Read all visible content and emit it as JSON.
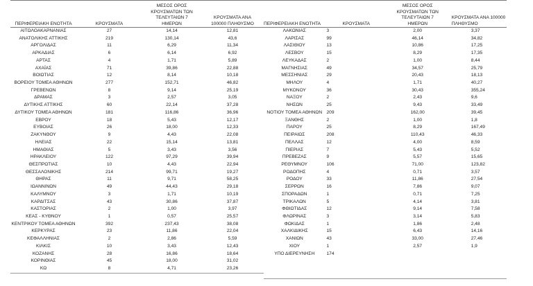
{
  "headers": {
    "region": "ΠΕΡΙΦΕΡΕΙΑΚΗ ΕΝΟΤΗΤΑ",
    "cases": "ΚΡΟΥΣΜΑΤΑ",
    "avg7": "ΜΕΣΟΣ ΟΡΟΣ ΚΡΟΥΣΜΑΤΩΝ ΤΩΝ ΤΕΛΕΥΤΑΙΩΝ 7 ΗΜΕΡΩΝ",
    "per100k": "ΚΡΟΥΣΜΑΤΑ ΑΝΑ 100000 ΠΛΗΘΥΣΜΟ"
  },
  "left_rows": [
    [
      "ΑΙΤΩΛΟΑΚΑΡΝΑΝΙΑΣ",
      "27",
      "14,14",
      "12,81"
    ],
    [
      "ΑΝΑΤΟΛΙΚΗΣ ΑΤΤΙΚΗΣ",
      "219",
      "130,14",
      "43,6"
    ],
    [
      "ΑΡΓΟΛΙΔΑΣ",
      "11",
      "6,29",
      "11,34"
    ],
    [
      "ΑΡΚΑΔΙΑΣ",
      "6",
      "6,14",
      "6,92"
    ],
    [
      "ΑΡΤΑΣ",
      "4",
      "1,71",
      "5,89"
    ],
    [
      "ΑΧΑΪΑΣ",
      "71",
      "39,86",
      "22,88"
    ],
    [
      "ΒΟΙΩΤΙΑΣ",
      "12",
      "8,14",
      "10,18"
    ],
    [
      "ΒΟΡΕΙΟΥ ΤΟΜΕΑ ΑΘΗΝΩΝ",
      "277",
      "152,71",
      "46,82"
    ],
    [
      "ΓΡΕΒΕΝΩΝ",
      "8",
      "9,14",
      "25,19"
    ],
    [
      "ΔΡΑΜΑΣ",
      "3",
      "2,57",
      "3,05"
    ],
    [
      "ΔΥΤΙΚΗΣ ΑΤΤΙΚΗΣ",
      "60",
      "22,14",
      "37,28"
    ],
    [
      "ΔΥΤΙΚΟΥ ΤΟΜΕΑ ΑΘΗΝΩΝ",
      "181",
      "116,86",
      "36,96"
    ],
    [
      "ΕΒΡΟΥ",
      "18",
      "5,43",
      "12,17"
    ],
    [
      "ΕΥΒΟΙΑΣ",
      "26",
      "18,00",
      "12,33"
    ],
    [
      "ΖΑΚΥΝΘΟΥ",
      "9",
      "4,43",
      "22,08"
    ],
    [
      "ΗΛΕΙΑΣ",
      "22",
      "15,14",
      "13,81"
    ],
    [
      "ΗΜΑΘΙΑΣ",
      "5",
      "3,43",
      "3,56"
    ],
    [
      "ΗΡΑΚΛΕΙΟΥ",
      "122",
      "97,29",
      "39,94"
    ],
    [
      "ΘΕΣΠΡΩΤΙΑΣ",
      "10",
      "4,43",
      "22,94"
    ],
    [
      "ΘΕΣΣΑΛΟΝΙΚΗΣ",
      "214",
      "99,71",
      "19,27"
    ],
    [
      "ΘΗΡΑΣ",
      "11",
      "9,71",
      "58,25"
    ],
    [
      "ΙΩΑΝΝΙΝΩΝ",
      "49",
      "44,43",
      "29,18"
    ],
    [
      "ΚΑΛΥΜΝΟΥ",
      "3",
      "1,71",
      "10,19"
    ],
    [
      "ΚΑΡΔΙΤΣΑΣ",
      "43",
      "30,86",
      "37,87"
    ],
    [
      "ΚΑΣΤΟΡΙΑΣ",
      "2",
      "1,00",
      "3,97"
    ],
    [
      "ΚΕΑΣ - ΚΥΘΝΟΥ",
      "1",
      "0,57",
      "25,57"
    ],
    [
      "ΚΕΝΤΡΙΚΟΥ ΤΟΜΕΑ ΑΘΗΝΩΝ",
      "392",
      "237,43",
      "38,08"
    ],
    [
      "ΚΕΡΚΥΡΑΣ",
      "23",
      "11,86",
      "22,04"
    ],
    [
      "ΚΕΦΑΛΛΗΝΙΑΣ",
      "2",
      "2,86",
      "5,59"
    ],
    [
      "ΚΙΛΚΙΣ",
      "10",
      "3,43",
      "12,43"
    ],
    [
      "ΚΟΖΑΝΗΣ",
      "28",
      "16,86",
      "18,64"
    ],
    [
      "ΚΟΡΙΝΘΙΑΣ",
      "45",
      "18,00",
      "31,02"
    ],
    [
      "ΚΩ",
      "8",
      "4,71",
      "23,26"
    ]
  ],
  "right_rows": [
    [
      "ΛΑΚΩΝΙΑΣ",
      "3",
      "2,00",
      "3,37"
    ],
    [
      "ΛΑΡΙΣΑΣ",
      "99",
      "46,14",
      "34,82"
    ],
    [
      "ΛΑΣΙΘΙΟΥ",
      "13",
      "10,86",
      "17,25"
    ],
    [
      "ΛΕΣΒΟΥ",
      "15",
      "8,29",
      "17,35"
    ],
    [
      "ΛΕΥΚΑΔΑΣ",
      "2",
      "1,00",
      "8,44"
    ],
    [
      "ΜΑΓΝΗΣΙΑΣ",
      "49",
      "34,57",
      "25,79"
    ],
    [
      "ΜΕΣΣΗΝΙΑΣ",
      "29",
      "20,43",
      "18,13"
    ],
    [
      "ΜΗΛΟΥ",
      "4",
      "1,71",
      "40,27"
    ],
    [
      "ΜΥΚΟΝΟΥ",
      "36",
      "30,43",
      "355,24"
    ],
    [
      "ΝΑΞΟΥ",
      "2",
      "2,43",
      "9,6"
    ],
    [
      "ΝΗΣΩΝ",
      "25",
      "9,43",
      "33,49"
    ],
    [
      "ΝΟΤΙΟΥ ΤΟΜΕΑ ΑΘΗΝΩΝ",
      "209",
      "162,00",
      "39,45"
    ],
    [
      "ΞΑΝΘΗΣ",
      "2",
      "1,00",
      "1,8"
    ],
    [
      "ΠΑΡΟΥ",
      "25",
      "8,29",
      "167,49"
    ],
    [
      "ΠΕΙΡΑΙΩΣ",
      "208",
      "110,43",
      "46,33"
    ],
    [
      "ΠΕΛΛΑΣ",
      "12",
      "4,00",
      "8,59"
    ],
    [
      "ΠΙΕΡΙΑΣ",
      "7",
      "5,43",
      "5,52"
    ],
    [
      "ΠΡΕΒΕΖΑΣ",
      "9",
      "5,57",
      "15,65"
    ],
    [
      "ΡΕΘΥΜΝΟΥ",
      "106",
      "71,00",
      "123,82"
    ],
    [
      "ΡΟΔΟΠΗΣ",
      "4",
      "0,71",
      "3,57"
    ],
    [
      "ΡΟΔΟΥ",
      "33",
      "11,86",
      "27,54"
    ],
    [
      "ΣΕΡΡΩΝ",
      "16",
      "7,86",
      "9,07"
    ],
    [
      "ΣΠΟΡΑΔΩΝ",
      "1",
      "0,71",
      "7,25"
    ],
    [
      "ΤΡΙΚΑΛΩΝ",
      "5",
      "4,14",
      "3,81"
    ],
    [
      "ΦΘΙΩΤΙΔΑΣ",
      "12",
      "9,14",
      "7,58"
    ],
    [
      "ΦΛΩΡΙΝΑΣ",
      "3",
      "3,14",
      "5,83"
    ],
    [
      "ΦΩΚΙΔΑΣ",
      "1",
      "1,86",
      "2,48"
    ],
    [
      "ΧΑΛΚΙΔΙΚΗΣ",
      "15",
      "6,43",
      "14,16"
    ],
    [
      "ΧΑΝΙΩΝ",
      "43",
      "33,00",
      "27,46"
    ],
    [
      "ΧΙΟΥ",
      "1",
      "2,57",
      "1,9"
    ],
    [
      "ΥΠΟ ΔΙΕΡΕΥΝΗΣΗ",
      "174",
      "",
      ""
    ]
  ]
}
